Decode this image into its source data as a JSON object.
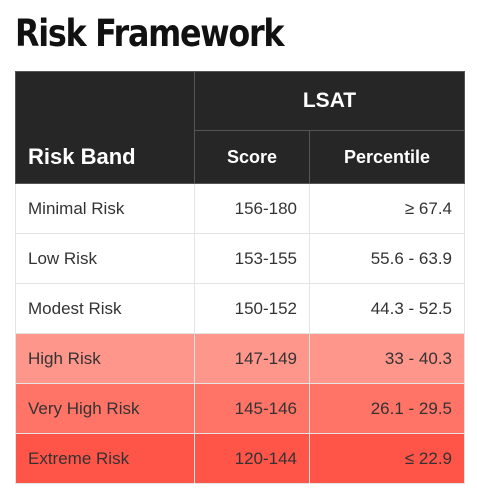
{
  "title": "Risk Framework",
  "header": {
    "band_label": "Risk Band",
    "group_label": "LSAT",
    "score_label": "Score",
    "percentile_label": "Percentile"
  },
  "rows": [
    {
      "band": "Minimal Risk",
      "score": "156-180",
      "percentile": "≥ 67.4",
      "bg": "#ffffff"
    },
    {
      "band": "Low Risk",
      "score": "153-155",
      "percentile": "55.6 - 63.9",
      "bg": "#ffffff"
    },
    {
      "band": "Modest Risk",
      "score": "150-152",
      "percentile": "44.3 - 52.5",
      "bg": "#ffffff"
    },
    {
      "band": "High Risk",
      "score": "147-149",
      "percentile": "33 - 40.3",
      "bg": "#ff968b"
    },
    {
      "band": "Very High Risk",
      "score": "145-146",
      "percentile": "26.1 - 29.5",
      "bg": "#ff7466"
    },
    {
      "band": "Extreme Risk",
      "score": "120-144",
      "percentile": "≤ 22.9",
      "bg": "#ff5448"
    }
  ],
  "colors": {
    "header_bg": "#262626",
    "high_risk": "#ff968b",
    "very_high_risk": "#ff7466",
    "extreme_risk": "#ff5448"
  }
}
